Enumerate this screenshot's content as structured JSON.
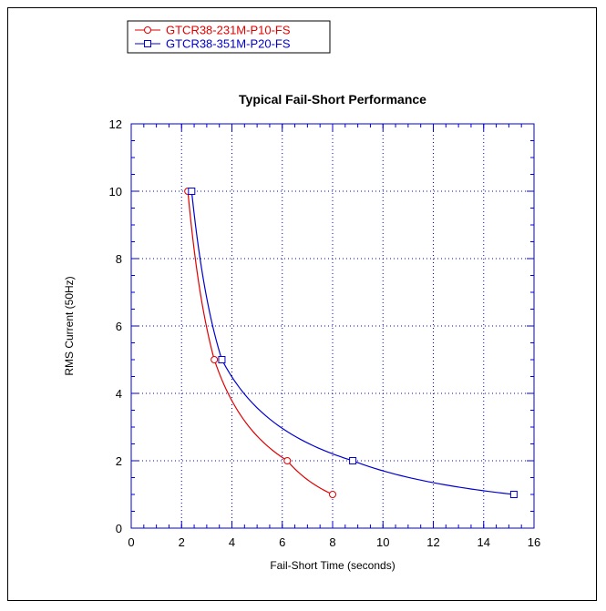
{
  "chart_data": {
    "type": "line",
    "title": "Typical Fail-Short Performance",
    "xlabel": "Fail-Short Time (seconds)",
    "ylabel": "RMS Current (50Hz)",
    "xlim": [
      0,
      16
    ],
    "ylim": [
      0,
      12
    ],
    "xticks": [
      0,
      2,
      4,
      6,
      8,
      10,
      12,
      14,
      16
    ],
    "yticks": [
      0,
      2,
      4,
      6,
      8,
      10,
      12
    ],
    "grid": true,
    "legend_position": "top-left",
    "series": [
      {
        "name": "GTCR38-231M-P10-FS",
        "color": "#e00000",
        "marker": "circle",
        "x": [
          2.25,
          3.3,
          6.2,
          8.0
        ],
        "y": [
          10,
          5,
          2,
          1
        ]
      },
      {
        "name": "GTCR38-351M-P20-FS",
        "color": "#0000d0",
        "marker": "square",
        "x": [
          2.4,
          3.6,
          8.8,
          15.2
        ],
        "y": [
          10,
          5,
          2,
          1
        ]
      }
    ]
  }
}
